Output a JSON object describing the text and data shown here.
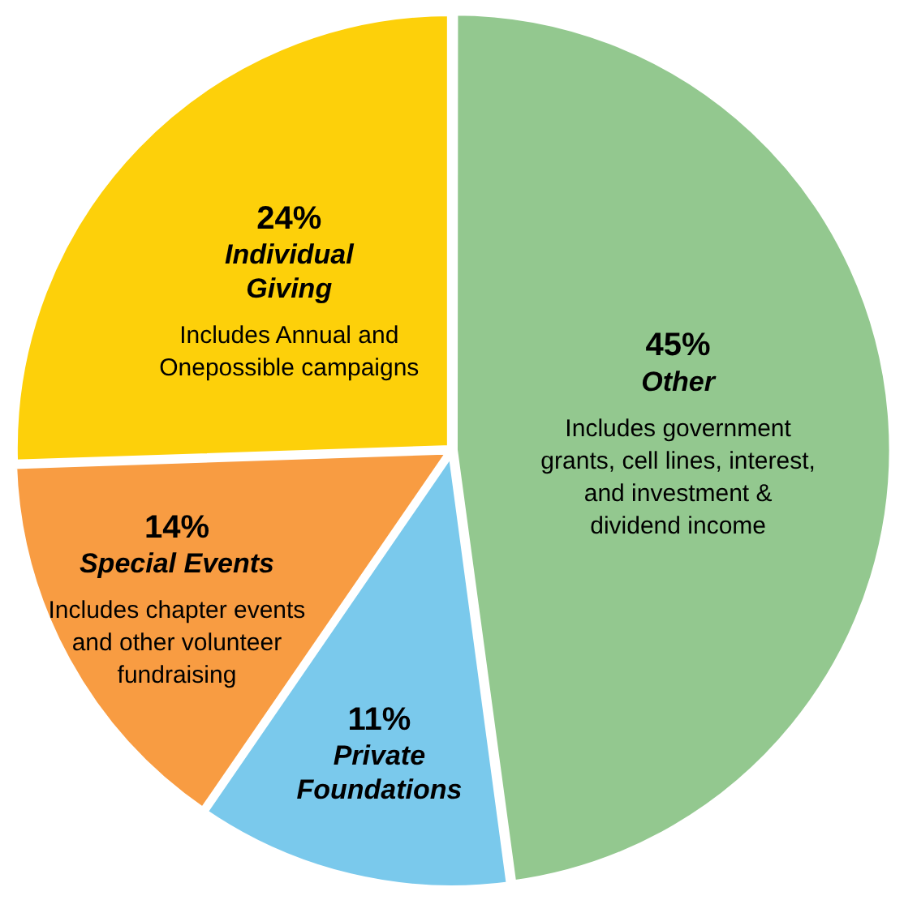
{
  "chart_data": {
    "type": "pie",
    "categories": [
      "Other",
      "Private Foundations",
      "Special Events",
      "Individual Giving"
    ],
    "values": [
      45,
      11,
      14,
      24
    ],
    "value_labels": [
      "45%",
      "11%",
      "14%",
      "24%"
    ],
    "colors": [
      "#93c88f",
      "#7ac9ec",
      "#f89c42",
      "#fdd00a"
    ],
    "annotations": [
      {
        "text": "Includes government grants, cell lines, interest, and investment & dividend income",
        "x": "Other"
      },
      {
        "text": "Includes chapter events and other volunteer fundraising",
        "x": "Special Events"
      },
      {
        "text": "Includes Annual and Onepossible campaigns",
        "x": "Individual Giving"
      }
    ],
    "legend": false
  }
}
